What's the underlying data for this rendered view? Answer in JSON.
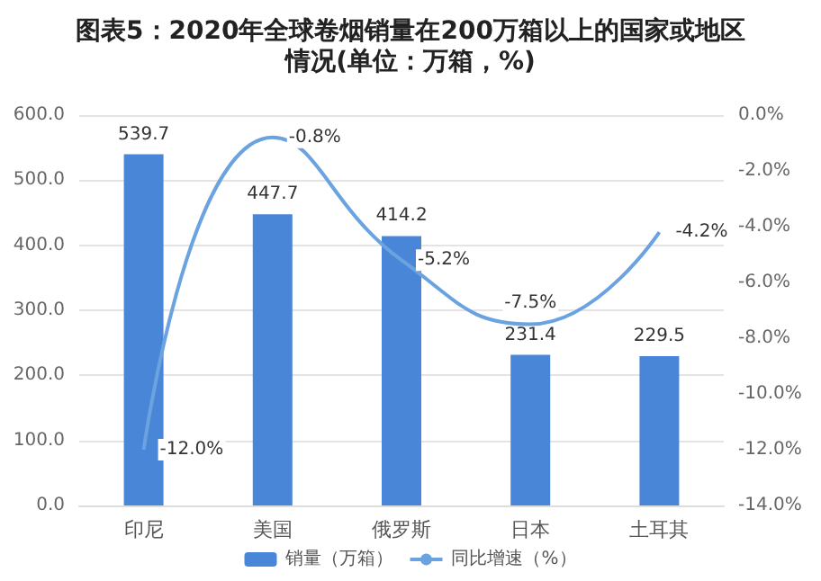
{
  "chart_data": {
    "type": "bar",
    "title": "图表5：2020年全球卷烟销量在200万箱以上的国家或地区情况(单位：万箱，%)",
    "categories": [
      "印尼",
      "美国",
      "俄罗斯",
      "日本",
      "土耳其"
    ],
    "series": [
      {
        "name": "销量（万箱）",
        "color": "#4a86d8",
        "values": [
          539.7,
          447.7,
          414.2,
          231.4,
          229.5
        ],
        "value_labels": [
          "539.7",
          "447.7",
          "414.2",
          "231.4",
          "229.5"
        ]
      },
      {
        "name": "同比增速（%）",
        "type": "line",
        "axis": "y2",
        "color": "#6aa3e0",
        "values": [
          -12.0,
          -0.8,
          -5.2,
          -7.5,
          -4.2
        ],
        "value_labels": [
          "-12.0%",
          "-0.8%",
          "-5.2%",
          "-7.5%",
          "-4.2%"
        ]
      }
    ],
    "ylim": [
      0,
      600
    ],
    "yticks": [
      {
        "value": 0,
        "label": "0.0"
      },
      {
        "value": 100,
        "label": "100.0"
      },
      {
        "value": 200,
        "label": "200.0"
      },
      {
        "value": 300,
        "label": "300.0"
      },
      {
        "value": 400,
        "label": "400.0"
      },
      {
        "value": 500,
        "label": "500.0"
      },
      {
        "value": 600,
        "label": "600.0"
      }
    ],
    "y2lim": [
      -14,
      0
    ],
    "y2ticks": [
      {
        "value": -14,
        "label": "-14.0%"
      },
      {
        "value": -12,
        "label": "-12.0%"
      },
      {
        "value": -10,
        "label": "-10.0%"
      },
      {
        "value": -8,
        "label": "-8.0%"
      },
      {
        "value": -6,
        "label": "-6.0%"
      },
      {
        "value": -4,
        "label": "-4.0%"
      },
      {
        "value": -2,
        "label": "-2.0%"
      },
      {
        "value": 0,
        "label": "0.0%"
      }
    ],
    "grid": "y",
    "legend": "bottom",
    "marker": "none"
  }
}
